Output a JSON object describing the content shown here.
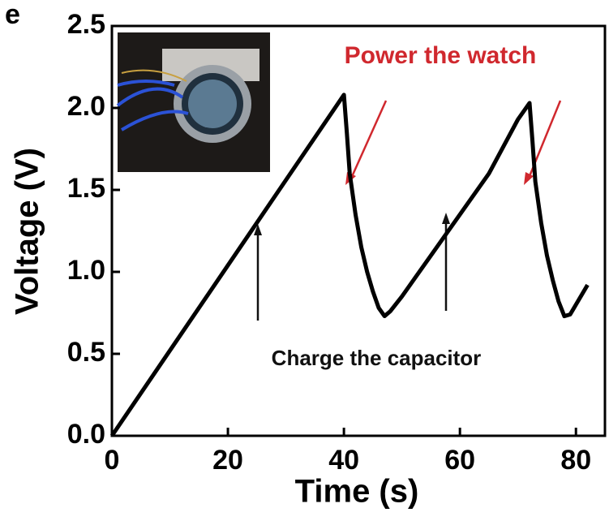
{
  "chart_data": {
    "type": "line",
    "panel_label": "e",
    "x_label": "Time (s)",
    "y_label": "Voltage (V)",
    "annotations": [
      "Power the watch",
      "Charge the capacitor"
    ],
    "annotation_colors": [
      "#d0282e",
      "#111111"
    ],
    "x": [
      0,
      10,
      20,
      30,
      40,
      40.5,
      41,
      42,
      43,
      44,
      45,
      46,
      47,
      48,
      50,
      55,
      60,
      65,
      70,
      72,
      72.5,
      73,
      74,
      75,
      76,
      77,
      78,
      79,
      80,
      82
    ],
    "series": [
      {
        "color": "#000000",
        "values": [
          0,
          0.52,
          1.04,
          1.56,
          2.08,
          1.85,
          1.6,
          1.35,
          1.15,
          1.0,
          0.88,
          0.78,
          0.73,
          0.76,
          0.85,
          1.1,
          1.35,
          1.6,
          1.93,
          2.03,
          1.8,
          1.55,
          1.3,
          1.1,
          0.95,
          0.82,
          0.73,
          0.74,
          0.8,
          0.92
        ]
      }
    ],
    "xlim": [
      0,
      85
    ],
    "ylim": [
      0,
      2.5
    ],
    "xticks": [
      0,
      20,
      40,
      60,
      80
    ],
    "yticks": [
      {
        "value": 0,
        "label": "0.0"
      },
      0.5,
      {
        "value": 1,
        "label": "1.0"
      },
      1.5,
      {
        "value": 2,
        "label": "2.0"
      },
      2.5
    ]
  }
}
